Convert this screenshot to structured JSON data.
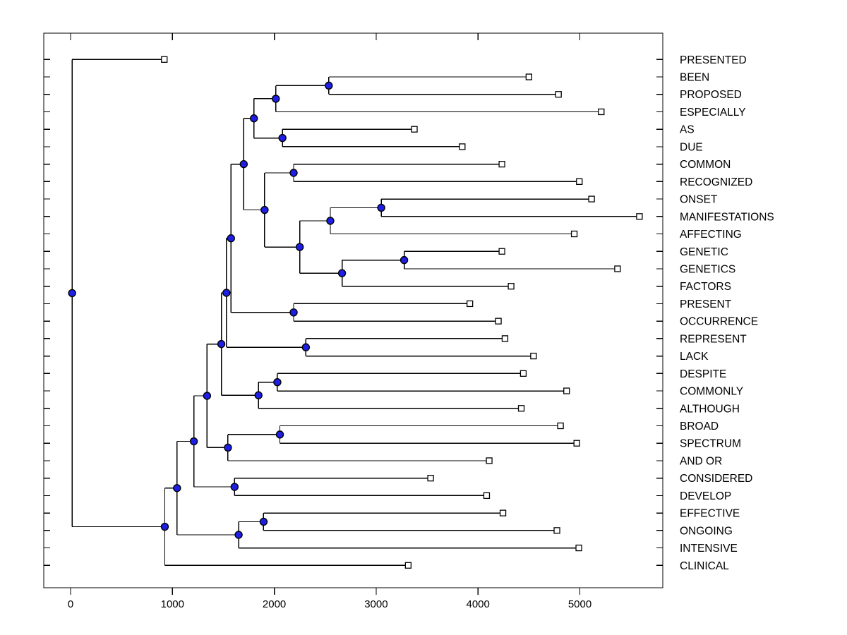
{
  "figure": {
    "background": "#ffffff",
    "box_color": "#000000",
    "line_color": "#000000",
    "node_marker_fill": "#1e1ee6",
    "node_marker_edge": "#000000",
    "leaf_marker_fill": "#ffffff",
    "leaf_marker_edge": "#000000"
  },
  "chart_data": {
    "type": "dendrogram",
    "orientation": "horizontal-root-left",
    "title": "",
    "xlabel": "",
    "ylabel": "",
    "x_ticks": [
      0,
      1000,
      2000,
      3000,
      4000,
      5000
    ],
    "xlim": [
      -260,
      5810
    ],
    "grid": false,
    "legend": null,
    "leaf_marker": "open-square",
    "node_marker": "filled-circle",
    "leaves": [
      {
        "id": "PRESENTED",
        "label": "PRESENTED",
        "x": 920
      },
      {
        "id": "BEEN",
        "label": "BEEN",
        "x": 4500
      },
      {
        "id": "PROPOSED",
        "label": "PROPOSED",
        "x": 4790
      },
      {
        "id": "ESPECIALLY",
        "label": "ESPECIALLY",
        "x": 5210
      },
      {
        "id": "AS",
        "label": "AS",
        "x": 3375
      },
      {
        "id": "DUE",
        "label": "DUE",
        "x": 3845
      },
      {
        "id": "COMMON",
        "label": "COMMON",
        "x": 4235
      },
      {
        "id": "RECOGNIZED",
        "label": "RECOGNIZED",
        "x": 4995
      },
      {
        "id": "ONSET",
        "label": "ONSET",
        "x": 5115
      },
      {
        "id": "MANIFESTATIONS",
        "label": "MANIFESTATIONS",
        "x": 5585
      },
      {
        "id": "AFFECTING",
        "label": "AFFECTING",
        "x": 4945
      },
      {
        "id": "GENETIC",
        "label": "GENETIC",
        "x": 4235
      },
      {
        "id": "GENETICS",
        "label": "GENETICS",
        "x": 5370
      },
      {
        "id": "FACTORS",
        "label": "FACTORS",
        "x": 4325
      },
      {
        "id": "PRESENT",
        "label": "PRESENT",
        "x": 3920
      },
      {
        "id": "OCCURRENCE",
        "label": "OCCURRENCE",
        "x": 4200
      },
      {
        "id": "REPRESENT",
        "label": "REPRESENT",
        "x": 4265
      },
      {
        "id": "LACK",
        "label": "LACK",
        "x": 4545
      },
      {
        "id": "DESPITE",
        "label": "DESPITE",
        "x": 4445
      },
      {
        "id": "COMMONLY",
        "label": "COMMONLY",
        "x": 4870
      },
      {
        "id": "ALTHOUGH",
        "label": "ALTHOUGH",
        "x": 4425
      },
      {
        "id": "BROAD",
        "label": "BROAD",
        "x": 4810
      },
      {
        "id": "SPECTRUM",
        "label": "SPECTRUM",
        "x": 4970
      },
      {
        "id": "AND_OR",
        "label": "AND OR",
        "x": 4110
      },
      {
        "id": "CONSIDERED",
        "label": "CONSIDERED",
        "x": 3535
      },
      {
        "id": "DEVELOP",
        "label": "DEVELOP",
        "x": 4085
      },
      {
        "id": "EFFECTIVE",
        "label": "EFFECTIVE",
        "x": 4245
      },
      {
        "id": "ONGOING",
        "label": "ONGOING",
        "x": 4775
      },
      {
        "id": "INTENSIVE",
        "label": "INTENSIVE",
        "x": 4990
      },
      {
        "id": "CLINICAL",
        "label": "CLINICAL",
        "x": 3315
      }
    ],
    "nodes": [
      {
        "id": "nA",
        "x": 2535,
        "children": [
          "BEEN",
          "PROPOSED"
        ]
      },
      {
        "id": "nB",
        "x": 2015,
        "children": [
          "nA",
          "ESPECIALLY"
        ]
      },
      {
        "id": "nD",
        "x": 2080,
        "children": [
          "AS",
          "DUE"
        ]
      },
      {
        "id": "nC",
        "x": 1800,
        "children": [
          "nB",
          "nD"
        ]
      },
      {
        "id": "nF",
        "x": 2190,
        "children": [
          "COMMON",
          "RECOGNIZED"
        ]
      },
      {
        "id": "nI",
        "x": 3050,
        "children": [
          "ONSET",
          "MANIFESTATIONS"
        ]
      },
      {
        "id": "nH",
        "x": 2550,
        "children": [
          "nI",
          "AFFECTING"
        ]
      },
      {
        "id": "nJ",
        "x": 3275,
        "children": [
          "GENETIC",
          "GENETICS"
        ]
      },
      {
        "id": "nK",
        "x": 2665,
        "children": [
          "nJ",
          "FACTORS"
        ]
      },
      {
        "id": "nW",
        "x": 2250,
        "children": [
          "nH",
          "nK"
        ]
      },
      {
        "id": "nG",
        "x": 1905,
        "children": [
          "nF",
          "nW"
        ]
      },
      {
        "id": "nE",
        "x": 1700,
        "children": [
          "nC",
          "nG"
        ]
      },
      {
        "id": "nL",
        "x": 2190,
        "children": [
          "PRESENT",
          "OCCURRENCE"
        ]
      },
      {
        "id": "nT2",
        "x": 1575,
        "children": [
          "nE",
          "nL"
        ]
      },
      {
        "id": "nQ",
        "x": 2310,
        "children": [
          "REPRESENT",
          "LACK"
        ]
      },
      {
        "id": "nT",
        "x": 1530,
        "children": [
          "nT2",
          "nQ"
        ]
      },
      {
        "id": "nO",
        "x": 2030,
        "children": [
          "DESPITE",
          "COMMONLY"
        ]
      },
      {
        "id": "nN",
        "x": 1845,
        "children": [
          "nO",
          "ALTHOUGH"
        ]
      },
      {
        "id": "nM",
        "x": 1480,
        "children": [
          "nT",
          "nN"
        ]
      },
      {
        "id": "nR2",
        "x": 2055,
        "children": [
          "BROAD",
          "SPECTRUM"
        ]
      },
      {
        "id": "nS",
        "x": 1545,
        "children": [
          "nR2",
          "AND_OR"
        ]
      },
      {
        "id": "nP2",
        "x": 1340,
        "children": [
          "nM",
          "nS"
        ]
      },
      {
        "id": "nU",
        "x": 1610,
        "children": [
          "CONSIDERED",
          "DEVELOP"
        ]
      },
      {
        "id": "nX1",
        "x": 1210,
        "children": [
          "nP2",
          "nU"
        ]
      },
      {
        "id": "nV2",
        "x": 1895,
        "children": [
          "EFFECTIVE",
          "ONGOING"
        ]
      },
      {
        "id": "nX2",
        "x": 1650,
        "children": [
          "nV2",
          "INTENSIVE"
        ]
      },
      {
        "id": "nY",
        "x": 1045,
        "children": [
          "nX1",
          "nX2"
        ]
      },
      {
        "id": "nZ",
        "x": 925,
        "children": [
          "nY",
          "CLINICAL"
        ]
      },
      {
        "id": "root",
        "x": 15,
        "children": [
          "PRESENTED",
          "nZ"
        ]
      }
    ],
    "root": "root"
  }
}
